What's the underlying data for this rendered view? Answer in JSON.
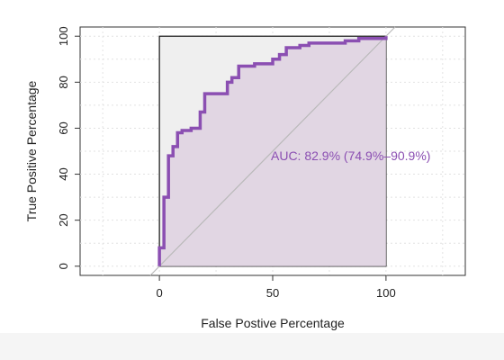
{
  "chart_data": {
    "type": "line",
    "title": "",
    "xlabel": "False Postive Percentage",
    "ylabel": "True Positive Percentage",
    "x_ticks": [
      "0",
      "50",
      "100"
    ],
    "y_ticks": [
      "0",
      "20",
      "40",
      "60",
      "80",
      "100"
    ],
    "xlim": [
      -35,
      135
    ],
    "ylim": [
      -4,
      104
    ],
    "grid": true,
    "annotation": "AUC: 82.9% (74.9%–90.9%)",
    "series": [
      {
        "color": "#8b4fb2",
        "fill": "#e1d6e3",
        "x": [
          0,
          0,
          2,
          2,
          4,
          4,
          6,
          6,
          8,
          8,
          10,
          10,
          14,
          14,
          18,
          18,
          20,
          20,
          30,
          30,
          32,
          32,
          35,
          35,
          42,
          42,
          50,
          50,
          53,
          53,
          56,
          56,
          62,
          62,
          66,
          66,
          82,
          82,
          88,
          88,
          100,
          100
        ],
        "y": [
          0,
          8,
          8,
          30,
          30,
          48,
          48,
          52,
          52,
          58,
          58,
          59,
          59,
          60,
          60,
          67,
          67,
          75,
          75,
          80,
          80,
          82,
          82,
          87,
          87,
          88,
          88,
          90,
          90,
          92,
          92,
          95,
          95,
          96,
          96,
          97,
          97,
          98,
          98,
          99,
          99,
          100
        ]
      }
    ]
  }
}
